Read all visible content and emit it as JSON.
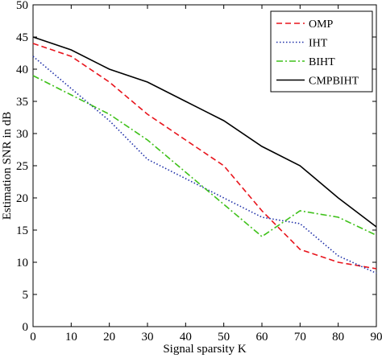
{
  "chart_data": {
    "type": "line",
    "xlabel": "Signal sparsity K",
    "ylabel": "Estimation SNR in dB",
    "xlim": [
      0,
      90
    ],
    "ylim": [
      0,
      50
    ],
    "xticks": [
      0,
      10,
      20,
      30,
      40,
      50,
      60,
      70,
      80,
      90
    ],
    "yticks": [
      0,
      5,
      10,
      15,
      20,
      25,
      30,
      35,
      40,
      45,
      50
    ],
    "x": [
      0,
      10,
      20,
      30,
      40,
      50,
      60,
      70,
      80,
      90
    ],
    "legend_position": "top-right",
    "grid": false,
    "series": [
      {
        "name": "OMP",
        "color": "#e8141c",
        "dash": "dashed",
        "values": [
          44,
          42,
          38,
          33,
          29,
          25,
          18,
          12,
          10,
          9
        ]
      },
      {
        "name": "IHT",
        "color": "#1e2fa8",
        "dash": "dotted",
        "values": [
          42,
          37,
          32,
          26,
          23,
          20,
          17,
          16,
          11,
          8.3
        ]
      },
      {
        "name": "BIHT",
        "color": "#3fc11a",
        "dash": "dash-dot",
        "values": [
          39,
          36,
          33,
          29,
          24,
          19,
          14,
          18,
          17,
          14.2
        ]
      },
      {
        "name": "CMPBIHT",
        "color": "#000000",
        "dash": "solid",
        "values": [
          45,
          43,
          40,
          38,
          35,
          32,
          28,
          25,
          20,
          15.5
        ]
      }
    ]
  }
}
